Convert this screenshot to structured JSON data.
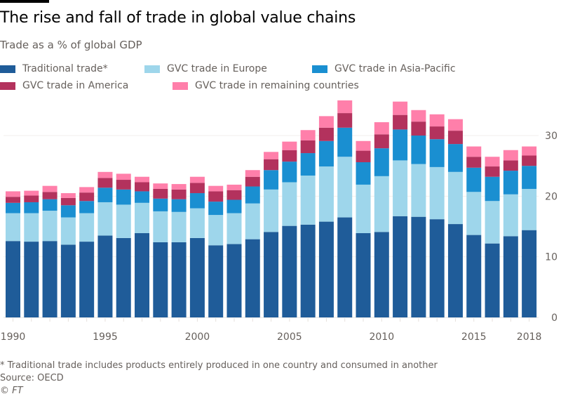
{
  "header": {
    "title": "The rise and fall of trade in global value chains",
    "subtitle": "Trade as a % of global GDP"
  },
  "footer": {
    "footnote": "* Traditional trade includes products entirely produced in one country and consumed in another",
    "source": "Source: OECD",
    "credit": "© FT"
  },
  "chart_data": {
    "type": "bar",
    "stacked": true,
    "title": "The rise and fall of trade in global value chains",
    "subtitle": "Trade as a % of global GDP",
    "xlabel": "",
    "ylabel": "",
    "ylim": [
      0,
      36
    ],
    "yticks": [
      0,
      10,
      20,
      30
    ],
    "y_axis_side": "right",
    "grid": true,
    "legend_position": "top-left",
    "categories": [
      "1990",
      "1991",
      "1992",
      "1993",
      "1994",
      "1995",
      "1996",
      "1997",
      "1998",
      "1999",
      "2000",
      "2001",
      "2002",
      "2003",
      "2004",
      "2005",
      "2006",
      "2007",
      "2008",
      "2009",
      "2010",
      "2011",
      "2012",
      "2013",
      "2014",
      "2015",
      "2016",
      "2017",
      "2018"
    ],
    "xtick_labels": [
      {
        "category": "1990",
        "label": "1990"
      },
      {
        "category": "1995",
        "label": "1995"
      },
      {
        "category": "2000",
        "label": "2000"
      },
      {
        "category": "2005",
        "label": "2005"
      },
      {
        "category": "2010",
        "label": "2010"
      },
      {
        "category": "2015",
        "label": "2015"
      },
      {
        "category": "2018",
        "label": "2018"
      }
    ],
    "series": [
      {
        "name": "Traditional trade*",
        "color": "#1f5c99",
        "values": [
          12.6,
          12.5,
          12.6,
          12.0,
          12.5,
          13.5,
          13.1,
          13.9,
          12.4,
          12.4,
          13.1,
          11.9,
          12.1,
          12.9,
          14.1,
          15.1,
          15.3,
          15.8,
          16.5,
          13.9,
          14.1,
          16.7,
          16.6,
          16.2,
          15.4,
          13.6,
          12.2,
          13.4,
          14.4
        ]
      },
      {
        "name": "GVC trade in Europe",
        "color": "#9ed6eb",
        "values": [
          4.6,
          4.7,
          5.0,
          4.5,
          4.7,
          5.5,
          5.5,
          5.0,
          5.1,
          5.0,
          4.9,
          5.0,
          5.1,
          5.9,
          7.0,
          7.2,
          8.1,
          9.1,
          10.0,
          8.0,
          9.2,
          9.2,
          8.7,
          8.6,
          8.6,
          7.1,
          7.0,
          6.9,
          6.8
        ]
      },
      {
        "name": "GVC trade in Asia-Pacific",
        "color": "#1a8fd1",
        "values": [
          1.7,
          1.8,
          1.9,
          2.0,
          2.0,
          2.4,
          2.5,
          1.9,
          2.1,
          2.1,
          2.5,
          2.2,
          2.2,
          2.8,
          3.2,
          3.4,
          3.7,
          4.2,
          4.8,
          3.7,
          4.6,
          5.1,
          4.7,
          4.6,
          4.6,
          4.0,
          4.0,
          3.9,
          3.8
        ]
      },
      {
        "name": "GVC trade in America",
        "color": "#b3325d",
        "values": [
          1.0,
          1.1,
          1.2,
          1.2,
          1.4,
          1.6,
          1.6,
          1.5,
          1.6,
          1.6,
          1.7,
          1.7,
          1.6,
          1.6,
          1.8,
          1.9,
          2.1,
          2.2,
          2.4,
          1.9,
          2.3,
          2.4,
          2.3,
          2.1,
          2.2,
          1.8,
          1.7,
          1.7,
          1.7
        ]
      },
      {
        "name": "GVC trade in remaining countries",
        "color": "#ff7faa",
        "values": [
          0.9,
          0.8,
          1.0,
          0.8,
          0.9,
          1.0,
          1.0,
          0.9,
          0.9,
          0.9,
          1.0,
          0.9,
          0.9,
          1.1,
          1.2,
          1.4,
          1.7,
          1.9,
          2.1,
          1.6,
          2.0,
          2.2,
          1.9,
          2.0,
          1.9,
          1.7,
          1.6,
          1.7,
          1.5
        ]
      }
    ]
  }
}
